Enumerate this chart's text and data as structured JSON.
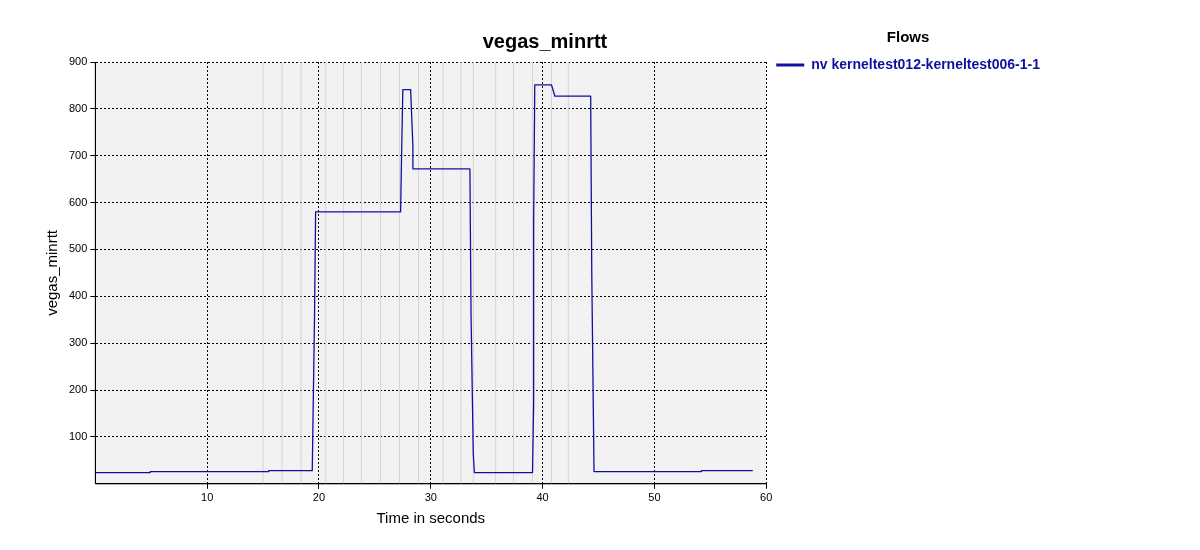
{
  "chart_data": {
    "type": "line",
    "title": "vegas_minrtt",
    "xlabel": "Time in seconds",
    "ylabel": "vegas_minrtt",
    "legend_title": "Flows",
    "legend": "right",
    "grid": true,
    "marker": "none",
    "line_style": "solid",
    "xlim": [
      0,
      60
    ],
    "xticks": [
      10,
      20,
      30,
      40,
      50,
      60
    ],
    "ylim": [
      0,
      900
    ],
    "yticks": [
      100,
      200,
      300,
      400,
      500,
      600,
      700,
      800,
      900
    ],
    "ref_lines": [
      {
        "axis": "x",
        "value": 15,
        "color": "#ddd0d4"
      },
      {
        "axis": "x",
        "value": 16.7,
        "color": "#ddd0d4"
      },
      {
        "axis": "x",
        "value": 18.4,
        "color": "#ddd0d4"
      },
      {
        "axis": "x",
        "value": 20.6,
        "color": "#ddd0d4"
      },
      {
        "axis": "x",
        "value": 22.2,
        "color": "#ddd0d4"
      },
      {
        "axis": "x",
        "value": 23.8,
        "color": "#ddd0d4"
      },
      {
        "axis": "x",
        "value": 25.5,
        "color": "#ddd0d4"
      },
      {
        "axis": "x",
        "value": 27.2,
        "color": "#ddd0d4"
      },
      {
        "axis": "x",
        "value": 28.9,
        "color": "#ddd0d4"
      },
      {
        "axis": "x",
        "value": 31.1,
        "color": "#ddd0d4"
      },
      {
        "axis": "x",
        "value": 32.7,
        "color": "#ddd0d4"
      },
      {
        "axis": "x",
        "value": 33.8,
        "color": "#ddd0d4"
      },
      {
        "axis": "x",
        "value": 35.8,
        "color": "#ddd0d4"
      },
      {
        "axis": "x",
        "value": 37.4,
        "color": "#ddd0d4"
      },
      {
        "axis": "x",
        "value": 39.1,
        "color": "#ddd0d4"
      },
      {
        "axis": "x",
        "value": 40.8,
        "color": "#ddd0d4"
      },
      {
        "axis": "x",
        "value": 42.3,
        "color": "#ddd0d4"
      }
    ],
    "series": [
      {
        "name": "nv kerneltest012-kerneltest006-1-1",
        "color": "#1010a0",
        "x": [
          0,
          4.9,
          4.9,
          15.5,
          15.5,
          19.4,
          19.6,
          19.7,
          27.3,
          27.4,
          27.5,
          28.2,
          28.4,
          28.4,
          33.5,
          33.6,
          33.8,
          33.9,
          39.1,
          39.2,
          39.2,
          39.3,
          40.8,
          41.1,
          44.3,
          44.4,
          44.6,
          54.2,
          54.2,
          58.8
        ],
        "values": [
          24,
          24,
          26,
          26,
          28,
          28,
          354,
          580,
          580,
          717,
          841,
          841,
          720,
          672,
          672,
          363,
          63,
          24,
          24,
          173,
          556,
          851,
          851,
          827,
          827,
          445,
          26,
          26,
          28,
          28
        ]
      }
    ]
  }
}
